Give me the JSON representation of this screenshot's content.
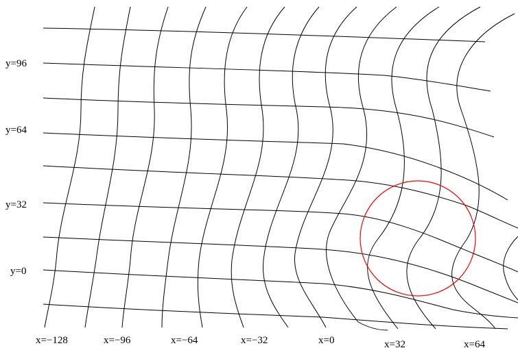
{
  "figure": {
    "x_labels": [
      "x=−128",
      "x=−96",
      "x=−64",
      "x=−32",
      "x=0",
      "x=32",
      "x=64"
    ],
    "y_labels": [
      "y=96",
      "y=64",
      "y=32",
      "y=0"
    ],
    "line_color": "#000000",
    "circle_color": "#ff0000"
  }
}
